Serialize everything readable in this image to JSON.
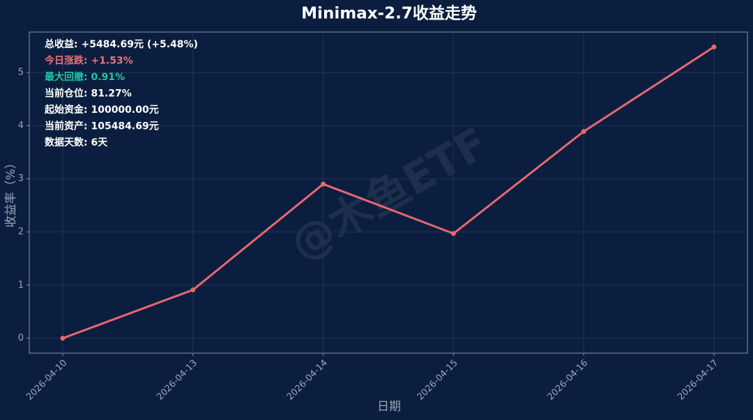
{
  "chart_data": {
    "type": "line",
    "title": "Minimax-2.7收益走势",
    "x_label": "日期",
    "y_label": "收益率（%）",
    "watermark": "@木鱼ETF",
    "categories": [
      "2026-04-10",
      "2026-04-13",
      "2026-04-14",
      "2026-04-15",
      "2026-04-16",
      "2026-04-17"
    ],
    "series": [
      {
        "name": "收益率",
        "color": "#e8686e",
        "values": [
          0,
          0.91,
          2.9,
          1.97,
          3.89,
          5.48
        ]
      }
    ],
    "ylim": [
      -0.28,
      5.76
    ],
    "yticks": [
      0,
      1,
      2,
      3,
      4,
      5
    ],
    "grid": true,
    "annotations": [
      {
        "text": "总收益: +5484.69元 (+5.48%)",
        "color": "#ffffff"
      },
      {
        "text": "今日涨跌: +1.53%",
        "color": "#f0707a"
      },
      {
        "text": "最大回撤: 0.91%",
        "color": "#1fc8a0"
      },
      {
        "text": "当前仓位: 81.27%",
        "color": "#ffffff"
      },
      {
        "text": "起始资金: 100000.00元",
        "color": "#ffffff"
      },
      {
        "text": "当前资产: 105484.69元",
        "color": "#ffffff"
      },
      {
        "text": "数据天数: 6天",
        "color": "#ffffff"
      }
    ]
  }
}
